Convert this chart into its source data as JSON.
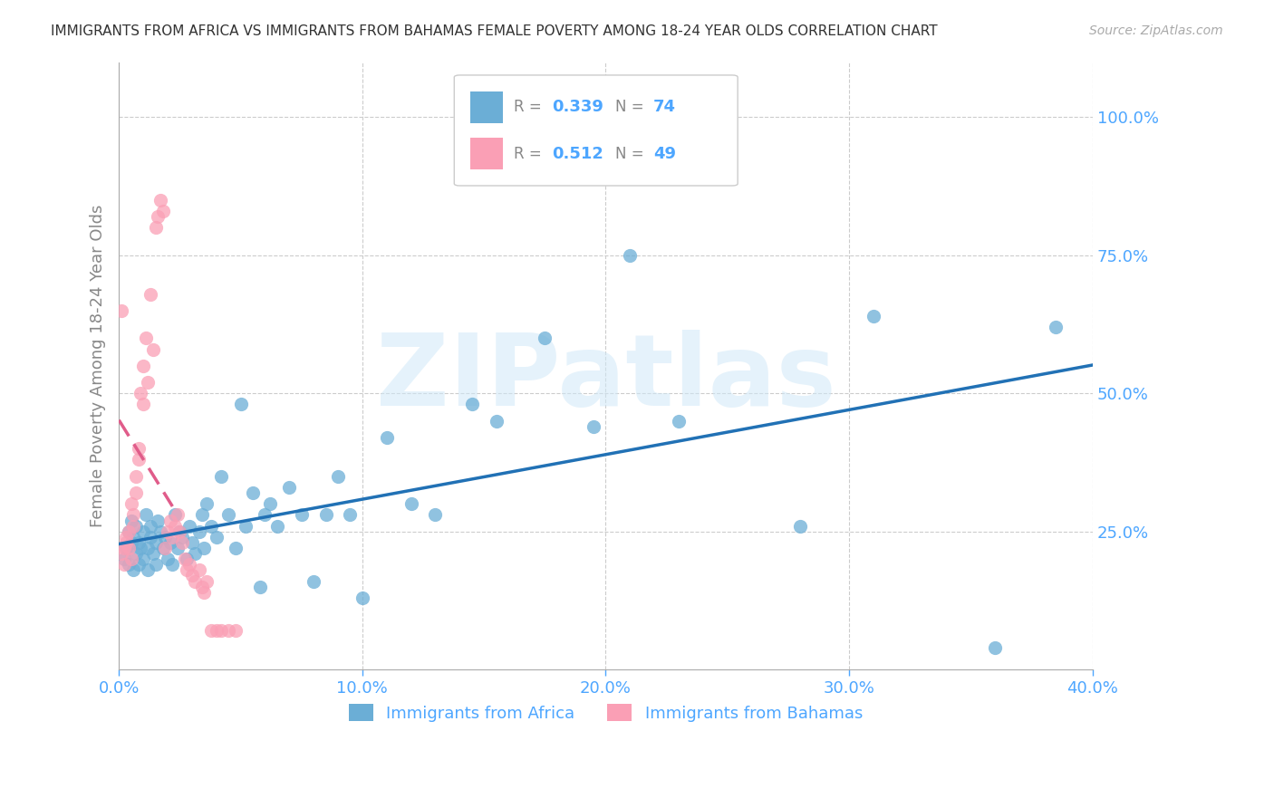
{
  "title": "IMMIGRANTS FROM AFRICA VS IMMIGRANTS FROM BAHAMAS FEMALE POVERTY AMONG 18-24 YEAR OLDS CORRELATION CHART",
  "source": "Source: ZipAtlas.com",
  "ylabel": "Female Poverty Among 18-24 Year Olds",
  "xlim": [
    0.0,
    0.4
  ],
  "ylim": [
    0.0,
    1.1
  ],
  "xticks": [
    0.0,
    0.1,
    0.2,
    0.3,
    0.4
  ],
  "xtick_labels": [
    "0.0%",
    "10.0%",
    "20.0%",
    "30.0%",
    "40.0%"
  ],
  "yticks_right": [
    0.25,
    0.5,
    0.75,
    1.0
  ],
  "ytick_labels_right": [
    "25.0%",
    "50.0%",
    "75.0%",
    "100.0%"
  ],
  "africa_color": "#6baed6",
  "bahamas_color": "#fa9fb5",
  "africa_line_color": "#2171b5",
  "bahamas_line_color": "#e05c8a",
  "africa_R": 0.339,
  "africa_N": 74,
  "bahamas_R": 0.512,
  "bahamas_N": 49,
  "watermark": "ZIPatlas",
  "background_color": "#ffffff",
  "grid_color": "#cccccc",
  "label_color": "#4da6ff",
  "title_color": "#333333",
  "africa_points_x": [
    0.002,
    0.003,
    0.004,
    0.004,
    0.005,
    0.005,
    0.006,
    0.006,
    0.007,
    0.007,
    0.008,
    0.008,
    0.009,
    0.01,
    0.01,
    0.011,
    0.012,
    0.012,
    0.013,
    0.013,
    0.014,
    0.015,
    0.015,
    0.016,
    0.017,
    0.018,
    0.019,
    0.02,
    0.021,
    0.022,
    0.023,
    0.024,
    0.025,
    0.026,
    0.028,
    0.029,
    0.03,
    0.031,
    0.033,
    0.034,
    0.035,
    0.036,
    0.038,
    0.04,
    0.042,
    0.045,
    0.048,
    0.05,
    0.052,
    0.055,
    0.058,
    0.06,
    0.062,
    0.065,
    0.07,
    0.075,
    0.08,
    0.085,
    0.09,
    0.095,
    0.1,
    0.11,
    0.12,
    0.13,
    0.145,
    0.155,
    0.175,
    0.195,
    0.21,
    0.23,
    0.28,
    0.31,
    0.36,
    0.385
  ],
  "africa_points_y": [
    0.2,
    0.22,
    0.25,
    0.19,
    0.23,
    0.27,
    0.18,
    0.24,
    0.21,
    0.26,
    0.23,
    0.19,
    0.22,
    0.25,
    0.2,
    0.28,
    0.22,
    0.18,
    0.24,
    0.26,
    0.21,
    0.23,
    0.19,
    0.27,
    0.25,
    0.22,
    0.24,
    0.2,
    0.23,
    0.19,
    0.28,
    0.22,
    0.25,
    0.24,
    0.2,
    0.26,
    0.23,
    0.21,
    0.25,
    0.28,
    0.22,
    0.3,
    0.26,
    0.24,
    0.35,
    0.28,
    0.22,
    0.48,
    0.26,
    0.32,
    0.15,
    0.28,
    0.3,
    0.26,
    0.33,
    0.28,
    0.16,
    0.28,
    0.35,
    0.28,
    0.13,
    0.42,
    0.3,
    0.28,
    0.48,
    0.45,
    0.6,
    0.44,
    0.75,
    0.45,
    0.26,
    0.64,
    0.04,
    0.62
  ],
  "bahamas_points_x": [
    0.001,
    0.001,
    0.002,
    0.002,
    0.003,
    0.003,
    0.004,
    0.004,
    0.005,
    0.005,
    0.006,
    0.006,
    0.007,
    0.007,
    0.008,
    0.008,
    0.009,
    0.01,
    0.01,
    0.011,
    0.012,
    0.013,
    0.014,
    0.015,
    0.016,
    0.017,
    0.018,
    0.019,
    0.02,
    0.021,
    0.022,
    0.023,
    0.024,
    0.025,
    0.026,
    0.027,
    0.028,
    0.029,
    0.03,
    0.031,
    0.033,
    0.034,
    0.035,
    0.036,
    0.038,
    0.04,
    0.042,
    0.045,
    0.048
  ],
  "bahamas_points_y": [
    0.65,
    0.21,
    0.22,
    0.19,
    0.23,
    0.24,
    0.25,
    0.22,
    0.3,
    0.2,
    0.28,
    0.26,
    0.35,
    0.32,
    0.4,
    0.38,
    0.5,
    0.55,
    0.48,
    0.6,
    0.52,
    0.68,
    0.58,
    0.8,
    0.82,
    0.85,
    0.83,
    0.22,
    0.25,
    0.27,
    0.24,
    0.26,
    0.28,
    0.25,
    0.23,
    0.2,
    0.18,
    0.19,
    0.17,
    0.16,
    0.18,
    0.15,
    0.14,
    0.16,
    0.07,
    0.07,
    0.07,
    0.07,
    0.07
  ]
}
